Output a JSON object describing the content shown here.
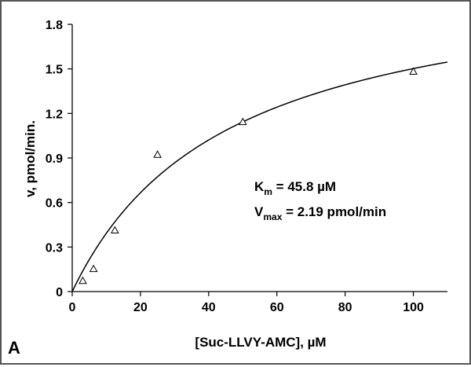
{
  "chart_data": {
    "type": "scatter",
    "panel_label": "A",
    "xlabel": "[Suc-LLVY-AMC], µM",
    "ylabel": "v, pmol/min.",
    "xlim": [
      0,
      110
    ],
    "ylim": [
      0,
      1.8
    ],
    "xticks": [
      "0",
      "20",
      "40",
      "60",
      "80",
      "100"
    ],
    "xtick_values": [
      0,
      20,
      40,
      60,
      80,
      100
    ],
    "yticks": [
      "0",
      "0.3",
      "0.6",
      "0.9",
      "1.2",
      "1.5",
      "1.8"
    ],
    "ytick_values": [
      0,
      0.3,
      0.6,
      0.9,
      1.2,
      1.5,
      1.8
    ],
    "grid": false,
    "legend": "none",
    "series": [
      {
        "marker": "open-triangle",
        "x": [
          3.1,
          6.25,
          12.5,
          25,
          50,
          100
        ],
        "y": [
          0.07,
          0.15,
          0.41,
          0.92,
          1.14,
          1.48
        ]
      }
    ],
    "fit": {
      "model": "michaelis-menten",
      "Km": 45.8,
      "Vmax": 2.19
    },
    "annotations": {
      "km": {
        "main": "K",
        "sub": "m",
        "rest": " = 45.8 µM"
      },
      "vmax": {
        "main": "V",
        "sub": "max",
        "rest": " = 2.19 pmol/min"
      }
    }
  }
}
